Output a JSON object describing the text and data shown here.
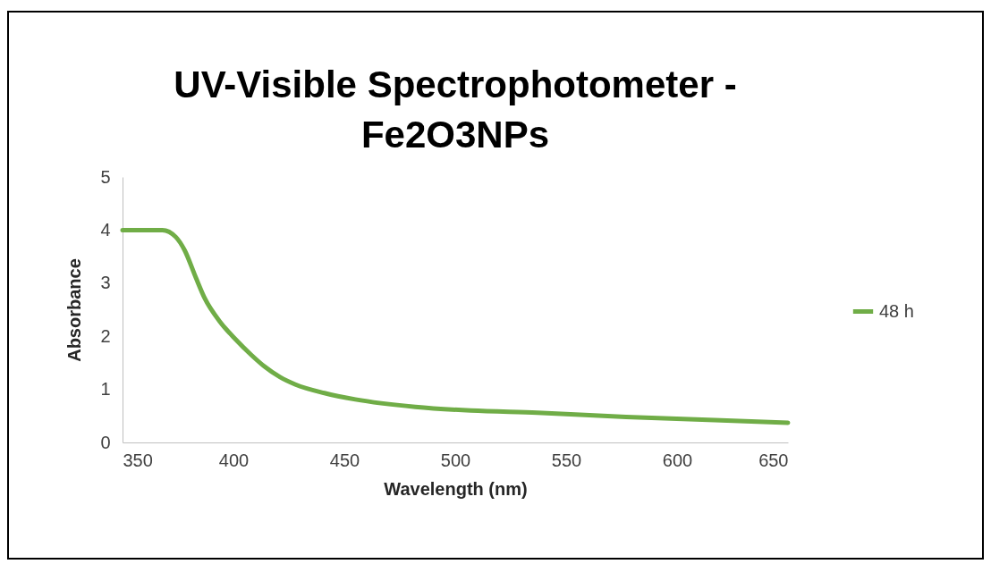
{
  "chart_data": {
    "type": "line",
    "title": "UV-Visible Spectrophotometer - Fe2O3NPs",
    "xlabel": "Wavelength (nm)",
    "ylabel": "Absorbance",
    "x": [
      350,
      368,
      374,
      378,
      383,
      387,
      394,
      401,
      408,
      414,
      421,
      428,
      441,
      455,
      482,
      507,
      537,
      577,
      617,
      650
    ],
    "series": [
      {
        "name": "48 h",
        "color": "#70ad47",
        "values": [
          4,
          4,
          3.87,
          3.62,
          3.11,
          2.72,
          2.27,
          1.94,
          1.65,
          1.43,
          1.23,
          1.09,
          0.93,
          0.81,
          0.67,
          0.6,
          0.56,
          0.48,
          0.42,
          0.37
        ]
      }
    ],
    "xlim": [
      350,
      650
    ],
    "xticks": [
      350,
      400,
      450,
      500,
      550,
      600,
      650
    ],
    "ylim": [
      0,
      5
    ],
    "yticks": [
      0,
      1,
      2,
      3,
      4,
      5
    ],
    "grid": false,
    "legend": "right",
    "marker": "none",
    "line_style": "solid"
  }
}
